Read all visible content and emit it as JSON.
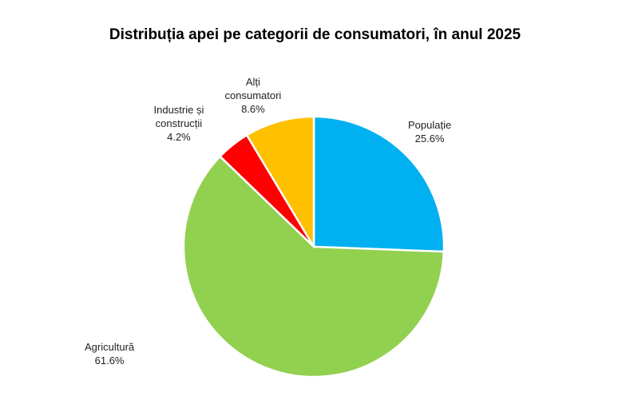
{
  "chart_data": {
    "type": "pie",
    "title": "Distribuția apei pe categorii de consumatori, în anul 2025",
    "slices": [
      {
        "label_lines": [
          "Populație"
        ],
        "value": 25.6,
        "value_label": "25.6%",
        "color": "#00B0F0"
      },
      {
        "label_lines": [
          "Agricultură"
        ],
        "value": 61.6,
        "value_label": "61.6%",
        "color": "#92D050"
      },
      {
        "label_lines": [
          "Industrie și",
          "construcții"
        ],
        "value": 4.2,
        "value_label": "4.2%",
        "color": "#FF0000"
      },
      {
        "label_lines": [
          "Alți",
          "consumatori"
        ],
        "value": 8.6,
        "value_label": "8.6%",
        "color": "#FFC000"
      }
    ],
    "legend": "none",
    "start_angle_deg": 0,
    "direction": "clockwise"
  }
}
